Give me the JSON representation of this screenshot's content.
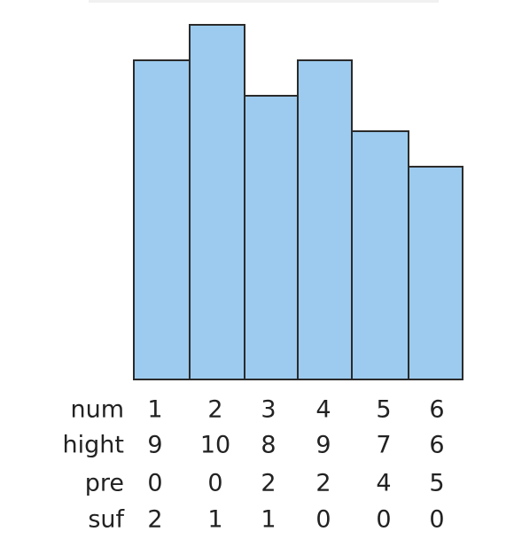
{
  "rows": [
    {
      "label": "num",
      "values": [
        1,
        2,
        3,
        4,
        5,
        6
      ]
    },
    {
      "label": "hight",
      "values": [
        9,
        10,
        8,
        9,
        7,
        6
      ]
    },
    {
      "label": "pre",
      "values": [
        0,
        0,
        2,
        2,
        4,
        5
      ]
    },
    {
      "label": "suf",
      "values": [
        2,
        1,
        1,
        0,
        0,
        0
      ]
    }
  ]
}
